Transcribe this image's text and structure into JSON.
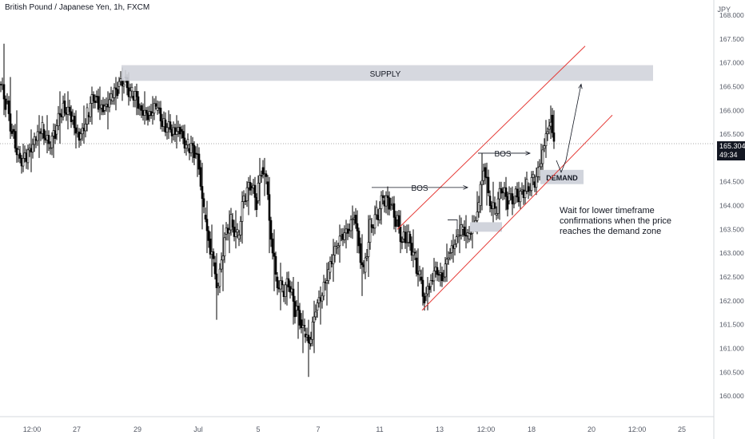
{
  "chart_data": {
    "type": "candlestick",
    "title": "British Pound / Japanese Yen, 1h, FXCM",
    "y_unit": "JPY",
    "ylim": [
      159.8,
      168.0
    ],
    "y_ticks": [
      "160.000",
      "160.500",
      "161.000",
      "161.500",
      "162.000",
      "162.500",
      "163.000",
      "163.500",
      "164.000",
      "164.500",
      "165.000",
      "165.500",
      "166.000",
      "166.500",
      "167.000",
      "167.500",
      "168.000"
    ],
    "x_ticks": [
      "12:00",
      "27",
      "29",
      "Jul",
      "5",
      "7",
      "11",
      "13",
      "12:00",
      "18",
      "20",
      "12:00",
      "25"
    ],
    "current_price": "165.304",
    "countdown": "49:34",
    "annotations": {
      "supply_label": "SUPPLY",
      "demand_label": "DEMAND",
      "bos_1": "BOS",
      "bos_2": "BOS",
      "note_lines": [
        "Wait for lower timeframe",
        "confirmations when the price",
        "reaches the demand zone"
      ]
    },
    "series": [
      {
        "x": 0,
        "o": 166.55,
        "h": 167.4,
        "l": 165.9,
        "c": 166.2
      },
      {
        "x": 8,
        "o": 166.2,
        "h": 166.7,
        "l": 165.4,
        "c": 165.6
      },
      {
        "x": 16,
        "o": 165.6,
        "h": 166.0,
        "l": 164.9,
        "c": 165.1
      },
      {
        "x": 24,
        "o": 165.1,
        "h": 165.3,
        "l": 164.7,
        "c": 164.9
      },
      {
        "x": 34,
        "o": 164.9,
        "h": 165.6,
        "l": 164.7,
        "c": 165.4
      },
      {
        "x": 44,
        "o": 165.4,
        "h": 165.9,
        "l": 165.0,
        "c": 165.7
      },
      {
        "x": 54,
        "o": 165.6,
        "h": 165.9,
        "l": 165.1,
        "c": 165.2
      },
      {
        "x": 62,
        "o": 165.2,
        "h": 165.7,
        "l": 165.0,
        "c": 165.5
      },
      {
        "x": 70,
        "o": 165.5,
        "h": 166.4,
        "l": 165.3,
        "c": 166.2
      },
      {
        "x": 80,
        "o": 166.2,
        "h": 166.4,
        "l": 165.6,
        "c": 165.8
      },
      {
        "x": 90,
        "o": 165.8,
        "h": 166.0,
        "l": 165.2,
        "c": 165.4
      },
      {
        "x": 100,
        "o": 165.4,
        "h": 166.1,
        "l": 165.3,
        "c": 165.9
      },
      {
        "x": 110,
        "o": 165.9,
        "h": 166.5,
        "l": 165.7,
        "c": 166.3
      },
      {
        "x": 120,
        "o": 166.3,
        "h": 166.5,
        "l": 165.8,
        "c": 166.0
      },
      {
        "x": 130,
        "o": 166.0,
        "h": 166.4,
        "l": 165.6,
        "c": 166.2
      },
      {
        "x": 140,
        "o": 166.2,
        "h": 166.7,
        "l": 166.0,
        "c": 166.5
      },
      {
        "x": 148,
        "o": 166.5,
        "h": 166.9,
        "l": 166.2,
        "c": 166.7
      },
      {
        "x": 156,
        "o": 166.7,
        "h": 166.8,
        "l": 166.1,
        "c": 166.3
      },
      {
        "x": 166,
        "o": 166.3,
        "h": 166.4,
        "l": 165.9,
        "c": 166.1
      },
      {
        "x": 176,
        "o": 166.1,
        "h": 166.4,
        "l": 165.7,
        "c": 165.9
      },
      {
        "x": 186,
        "o": 165.9,
        "h": 166.3,
        "l": 165.7,
        "c": 166.0
      },
      {
        "x": 196,
        "o": 166.0,
        "h": 166.2,
        "l": 165.6,
        "c": 165.8
      },
      {
        "x": 206,
        "o": 165.8,
        "h": 166.0,
        "l": 165.4,
        "c": 165.5
      },
      {
        "x": 216,
        "o": 165.5,
        "h": 165.9,
        "l": 165.2,
        "c": 165.6
      },
      {
        "x": 226,
        "o": 165.6,
        "h": 165.7,
        "l": 165.1,
        "c": 165.2
      },
      {
        "x": 236,
        "o": 165.2,
        "h": 165.4,
        "l": 164.9,
        "c": 165.1
      },
      {
        "x": 244,
        "o": 165.1,
        "h": 165.3,
        "l": 164.6,
        "c": 164.8
      },
      {
        "x": 250,
        "o": 164.8,
        "h": 164.9,
        "l": 163.5,
        "c": 163.8
      },
      {
        "x": 256,
        "o": 163.8,
        "h": 164.1,
        "l": 163.0,
        "c": 163.3
      },
      {
        "x": 262,
        "o": 163.3,
        "h": 163.6,
        "l": 162.5,
        "c": 162.8
      },
      {
        "x": 268,
        "o": 162.8,
        "h": 163.0,
        "l": 161.6,
        "c": 162.3
      },
      {
        "x": 274,
        "o": 162.3,
        "h": 163.6,
        "l": 162.2,
        "c": 163.4
      },
      {
        "x": 282,
        "o": 163.4,
        "h": 163.9,
        "l": 163.0,
        "c": 163.7
      },
      {
        "x": 290,
        "o": 163.7,
        "h": 163.9,
        "l": 163.1,
        "c": 163.3
      },
      {
        "x": 298,
        "o": 163.3,
        "h": 164.3,
        "l": 163.2,
        "c": 164.1
      },
      {
        "x": 306,
        "o": 164.1,
        "h": 164.6,
        "l": 163.8,
        "c": 164.4
      },
      {
        "x": 314,
        "o": 164.4,
        "h": 164.6,
        "l": 163.9,
        "c": 164.1
      },
      {
        "x": 322,
        "o": 164.1,
        "h": 165.0,
        "l": 164.0,
        "c": 164.8
      },
      {
        "x": 328,
        "o": 164.8,
        "h": 165.0,
        "l": 164.2,
        "c": 164.5
      },
      {
        "x": 334,
        "o": 164.5,
        "h": 164.6,
        "l": 163.0,
        "c": 163.3
      },
      {
        "x": 340,
        "o": 163.3,
        "h": 163.5,
        "l": 162.2,
        "c": 162.5
      },
      {
        "x": 346,
        "o": 162.5,
        "h": 162.8,
        "l": 161.8,
        "c": 162.2
      },
      {
        "x": 354,
        "o": 162.2,
        "h": 162.6,
        "l": 161.9,
        "c": 162.3
      },
      {
        "x": 362,
        "o": 162.3,
        "h": 162.5,
        "l": 161.5,
        "c": 161.8
      },
      {
        "x": 370,
        "o": 161.8,
        "h": 162.4,
        "l": 161.2,
        "c": 161.6
      },
      {
        "x": 376,
        "o": 161.6,
        "h": 161.8,
        "l": 160.9,
        "c": 161.3
      },
      {
        "x": 381,
        "o": 161.3,
        "h": 161.6,
        "l": 160.4,
        "c": 161.1
      },
      {
        "x": 388,
        "o": 161.1,
        "h": 162.0,
        "l": 160.9,
        "c": 161.8
      },
      {
        "x": 396,
        "o": 161.8,
        "h": 162.3,
        "l": 161.5,
        "c": 162.1
      },
      {
        "x": 404,
        "o": 162.1,
        "h": 162.8,
        "l": 161.9,
        "c": 162.6
      },
      {
        "x": 412,
        "o": 162.6,
        "h": 163.3,
        "l": 162.4,
        "c": 163.1
      },
      {
        "x": 420,
        "o": 163.1,
        "h": 163.6,
        "l": 162.8,
        "c": 163.4
      },
      {
        "x": 428,
        "o": 163.4,
        "h": 163.7,
        "l": 163.1,
        "c": 163.5
      },
      {
        "x": 436,
        "o": 163.5,
        "h": 164.0,
        "l": 163.3,
        "c": 163.8
      },
      {
        "x": 444,
        "o": 163.8,
        "h": 163.9,
        "l": 163.0,
        "c": 163.2
      },
      {
        "x": 450,
        "o": 163.2,
        "h": 163.4,
        "l": 162.1,
        "c": 162.6
      },
      {
        "x": 456,
        "o": 162.6,
        "h": 163.8,
        "l": 162.5,
        "c": 163.6
      },
      {
        "x": 464,
        "o": 163.6,
        "h": 164.0,
        "l": 163.4,
        "c": 163.8
      },
      {
        "x": 472,
        "o": 163.8,
        "h": 164.3,
        "l": 163.6,
        "c": 164.1
      },
      {
        "x": 480,
        "o": 164.1,
        "h": 164.4,
        "l": 163.8,
        "c": 164.0
      },
      {
        "x": 488,
        "o": 164.0,
        "h": 164.2,
        "l": 163.5,
        "c": 163.7
      },
      {
        "x": 496,
        "o": 163.7,
        "h": 163.9,
        "l": 163.0,
        "c": 163.3
      },
      {
        "x": 504,
        "o": 163.3,
        "h": 163.6,
        "l": 163.0,
        "c": 163.4
      },
      {
        "x": 512,
        "o": 163.4,
        "h": 163.5,
        "l": 162.7,
        "c": 162.9
      },
      {
        "x": 520,
        "o": 162.9,
        "h": 163.1,
        "l": 162.3,
        "c": 162.5
      },
      {
        "x": 526,
        "o": 162.5,
        "h": 162.7,
        "l": 161.9,
        "c": 162.1
      },
      {
        "x": 532,
        "o": 162.1,
        "h": 162.5,
        "l": 161.8,
        "c": 162.3
      },
      {
        "x": 538,
        "o": 162.3,
        "h": 162.9,
        "l": 162.2,
        "c": 162.7
      },
      {
        "x": 546,
        "o": 162.7,
        "h": 162.8,
        "l": 162.3,
        "c": 162.5
      },
      {
        "x": 554,
        "o": 162.5,
        "h": 163.2,
        "l": 162.4,
        "c": 163.0
      },
      {
        "x": 562,
        "o": 163.0,
        "h": 163.4,
        "l": 162.8,
        "c": 163.2
      },
      {
        "x": 570,
        "o": 163.2,
        "h": 163.8,
        "l": 163.0,
        "c": 163.5
      },
      {
        "x": 578,
        "o": 163.5,
        "h": 163.8,
        "l": 163.1,
        "c": 163.3
      },
      {
        "x": 586,
        "o": 163.3,
        "h": 163.8,
        "l": 163.1,
        "c": 163.6
      },
      {
        "x": 594,
        "o": 163.6,
        "h": 164.3,
        "l": 163.4,
        "c": 164.0
      },
      {
        "x": 600,
        "o": 164.0,
        "h": 165.1,
        "l": 163.9,
        "c": 164.8
      },
      {
        "x": 606,
        "o": 164.8,
        "h": 164.9,
        "l": 164.0,
        "c": 164.2
      },
      {
        "x": 612,
        "o": 164.2,
        "h": 164.5,
        "l": 163.6,
        "c": 163.8
      },
      {
        "x": 620,
        "o": 163.8,
        "h": 164.5,
        "l": 163.7,
        "c": 164.3
      },
      {
        "x": 628,
        "o": 164.3,
        "h": 164.6,
        "l": 163.9,
        "c": 164.1
      },
      {
        "x": 636,
        "o": 164.1,
        "h": 164.4,
        "l": 163.8,
        "c": 164.2
      },
      {
        "x": 644,
        "o": 164.2,
        "h": 164.5,
        "l": 164.0,
        "c": 164.3
      },
      {
        "x": 652,
        "o": 164.3,
        "h": 164.6,
        "l": 164.1,
        "c": 164.4
      },
      {
        "x": 660,
        "o": 164.4,
        "h": 164.7,
        "l": 164.2,
        "c": 164.5
      },
      {
        "x": 668,
        "o": 164.5,
        "h": 164.8,
        "l": 164.3,
        "c": 164.6
      },
      {
        "x": 674,
        "o": 164.6,
        "h": 165.3,
        "l": 164.5,
        "c": 165.2
      },
      {
        "x": 680,
        "o": 165.2,
        "h": 165.8,
        "l": 165.0,
        "c": 165.6
      },
      {
        "x": 686,
        "o": 165.6,
        "h": 166.1,
        "l": 165.4,
        "c": 165.9
      },
      {
        "x": 690,
        "o": 165.9,
        "h": 166.0,
        "l": 165.2,
        "c": 165.3
      }
    ]
  }
}
